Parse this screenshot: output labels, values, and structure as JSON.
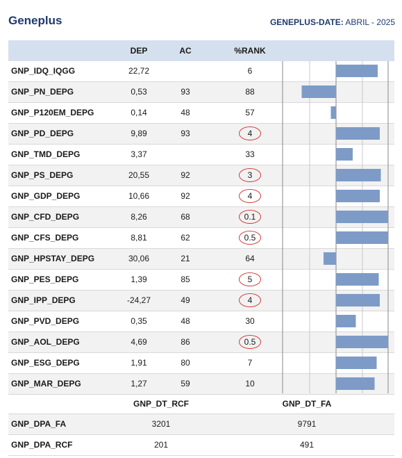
{
  "header": {
    "title": "Geneplus",
    "date_label": "GENEPLUS-DATE:",
    "date_value": "ABRIL - 2025"
  },
  "table": {
    "columns": [
      "DEP",
      "AC",
      "%RANK"
    ],
    "rows": [
      {
        "name": "GNP_IDQ_IQGG",
        "dep": "22,72",
        "ac": "",
        "rank": "6",
        "flag": false,
        "bar": 0.4
      },
      {
        "name": "GNP_PN_DEPG",
        "dep": "0,53",
        "ac": "93",
        "rank": "88",
        "flag": false,
        "bar": -0.33
      },
      {
        "name": "GNP_P120EM_DEPG",
        "dep": "0,14",
        "ac": "48",
        "rank": "57",
        "flag": false,
        "bar": -0.05
      },
      {
        "name": "GNP_PD_DEPG",
        "dep": "9,89",
        "ac": "93",
        "rank": "4",
        "flag": true,
        "bar": 0.42
      },
      {
        "name": "GNP_TMD_DEPG",
        "dep": "3,37",
        "ac": "",
        "rank": "33",
        "flag": false,
        "bar": 0.16
      },
      {
        "name": "GNP_PS_DEPG",
        "dep": "20,55",
        "ac": "92",
        "rank": "3",
        "flag": true,
        "bar": 0.43
      },
      {
        "name": "GNP_GDP_DEPG",
        "dep": "10,66",
        "ac": "92",
        "rank": "4",
        "flag": true,
        "bar": 0.42
      },
      {
        "name": "GNP_CFD_DEPG",
        "dep": "8,26",
        "ac": "68",
        "rank": "0.1",
        "flag": true,
        "bar": 0.5
      },
      {
        "name": "GNP_CFS_DEPG",
        "dep": "8,81",
        "ac": "62",
        "rank": "0.5",
        "flag": true,
        "bar": 0.5
      },
      {
        "name": "GNP_HPSTAY_DEPG",
        "dep": "30,06",
        "ac": "21",
        "rank": "64",
        "flag": false,
        "bar": -0.12
      },
      {
        "name": "GNP_PES_DEPG",
        "dep": "1,39",
        "ac": "85",
        "rank": "5",
        "flag": true,
        "bar": 0.41
      },
      {
        "name": "GNP_IPP_DEPG",
        "dep": "-24,27",
        "ac": "49",
        "rank": "4",
        "flag": true,
        "bar": 0.42
      },
      {
        "name": "GNP_PVD_DEPG",
        "dep": "0,35",
        "ac": "48",
        "rank": "30",
        "flag": false,
        "bar": 0.19
      },
      {
        "name": "GNP_AOL_DEPG",
        "dep": "4,69",
        "ac": "86",
        "rank": "0.5",
        "flag": true,
        "bar": 0.5
      },
      {
        "name": "GNP_ESG_DEPG",
        "dep": "1,91",
        "ac": "80",
        "rank": "7",
        "flag": false,
        "bar": 0.39
      },
      {
        "name": "GNP_MAR_DEPG",
        "dep": "1,27",
        "ac": "59",
        "rank": "10",
        "flag": false,
        "bar": 0.37
      }
    ]
  },
  "bottom": {
    "columns": [
      "GNP_DT_RCF",
      "GNP_DT_FA"
    ],
    "rows": [
      {
        "name": "GNP_DPA_FA",
        "rcf": "3201",
        "fa": "9791"
      },
      {
        "name": "GNP_DPA_RCF",
        "rcf": "201",
        "fa": "491"
      }
    ]
  },
  "colors": {
    "title": "#1e3a6e",
    "header_bg": "#d5e0ef",
    "bar": "#7d9bc6",
    "flag_circle": "#d23a3a"
  }
}
